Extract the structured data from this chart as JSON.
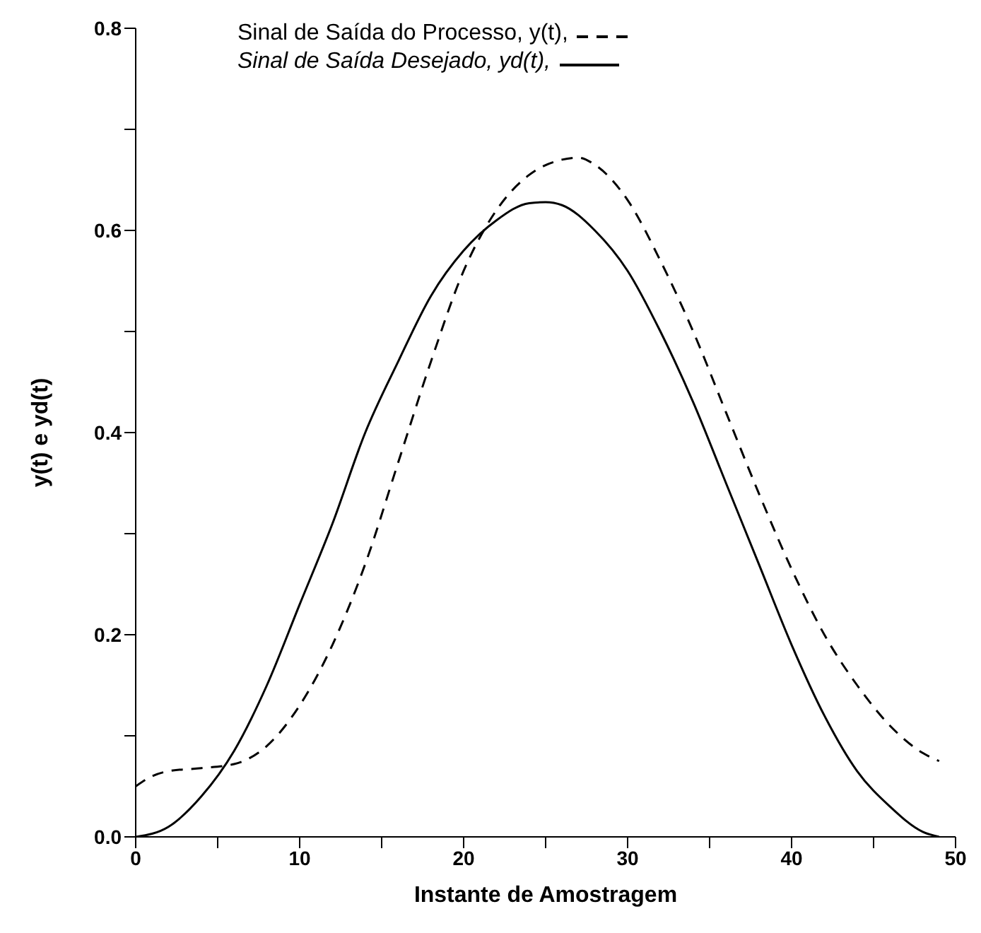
{
  "chart_data": {
    "type": "line",
    "xlabel": "Instante de Amostragem",
    "ylabel": "y(t)  e  yd(t)",
    "xlim": [
      0,
      50
    ],
    "ylim": [
      0,
      0.8
    ],
    "xticks": [
      0,
      {
        "value": 5,
        "label": null
      },
      10,
      {
        "value": 15,
        "label": null
      },
      20,
      {
        "value": 25,
        "label": null
      },
      30,
      {
        "value": 35,
        "label": null
      },
      40,
      {
        "value": 45,
        "label": null
      },
      50
    ],
    "yticks": [
      {
        "value": 0,
        "label": "0.0"
      },
      {
        "value": 0.1,
        "label": null
      },
      0.2,
      {
        "value": 0.3,
        "label": null
      },
      0.4,
      {
        "value": 0.5,
        "label": null
      },
      0.6,
      {
        "value": 0.7,
        "label": null
      },
      0.8
    ],
    "legend": "top",
    "grid": false,
    "marker": "none",
    "series": [
      {
        "name": "Sinal de Saída do Processo, y(t),",
        "color": "#000000",
        "line_style": "dashed",
        "x": [
          0,
          1,
          2,
          4,
          6,
          8,
          10,
          12,
          14,
          16,
          18,
          20,
          22,
          24,
          26,
          27,
          28,
          30,
          32,
          34,
          36,
          38,
          40,
          42,
          44,
          46,
          48,
          49
        ],
        "values": [
          0.05,
          0.06,
          0.065,
          0.068,
          0.072,
          0.09,
          0.13,
          0.19,
          0.27,
          0.37,
          0.47,
          0.56,
          0.62,
          0.655,
          0.67,
          0.672,
          0.665,
          0.63,
          0.57,
          0.5,
          0.42,
          0.34,
          0.265,
          0.2,
          0.15,
          0.11,
          0.083,
          0.075
        ]
      },
      {
        "name": "Sinal de Saída Desejado, yd(t),",
        "color": "#000000",
        "line_style": "solid",
        "x": [
          0,
          2,
          4,
          6,
          8,
          10,
          12,
          14,
          16,
          18,
          20,
          22,
          24,
          25,
          26,
          28,
          30,
          32,
          34,
          36,
          38,
          40,
          42,
          44,
          46,
          48,
          49
        ],
        "values": [
          0,
          0.01,
          0.04,
          0.085,
          0.15,
          0.23,
          0.31,
          0.4,
          0.47,
          0.535,
          0.58,
          0.61,
          0.627,
          0.628,
          0.625,
          0.6,
          0.56,
          0.5,
          0.43,
          0.35,
          0.27,
          0.19,
          0.12,
          0.065,
          0.03,
          0.005,
          0
        ]
      }
    ]
  }
}
